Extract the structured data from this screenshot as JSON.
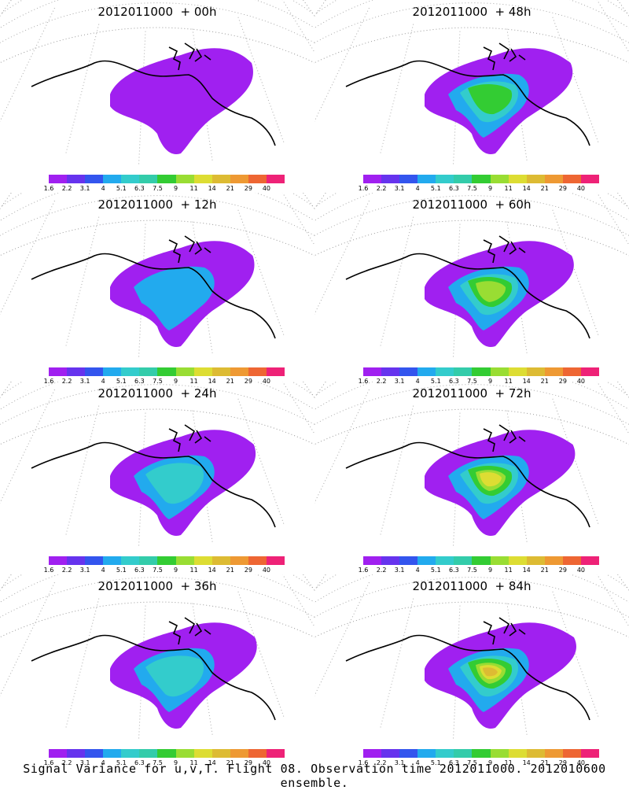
{
  "panels": [
    {
      "title": "2012011000  + 00h",
      "lead_h": 0
    },
    {
      "title": "2012011000  + 48h",
      "lead_h": 48
    },
    {
      "title": "2012011000  + 12h",
      "lead_h": 12
    },
    {
      "title": "2012011000  + 60h",
      "lead_h": 60
    },
    {
      "title": "2012011000  + 24h",
      "lead_h": 24
    },
    {
      "title": "2012011000  + 72h",
      "lead_h": 72
    },
    {
      "title": "2012011000  + 36h",
      "lead_h": 36
    },
    {
      "title": "2012011000  + 84h",
      "lead_h": 84
    }
  ],
  "colorbar": {
    "labels": [
      "1.6",
      "2.2",
      "3.1",
      "4",
      "5.1",
      "6.3",
      "7.5",
      "9",
      "11",
      "14",
      "21",
      "29",
      "40"
    ],
    "colors": [
      "#a020f0",
      "#6633ee",
      "#3355ee",
      "#22aaee",
      "#33cccc",
      "#33ccaa",
      "#33cc33",
      "#99dd33",
      "#dddd33",
      "#ddbb33",
      "#ee9933",
      "#ee6633",
      "#ee2277"
    ]
  },
  "footer": "Signal Variance for u,v,T. Flight 08. Observation time 2012011000. 2012010600 ensemble."
}
